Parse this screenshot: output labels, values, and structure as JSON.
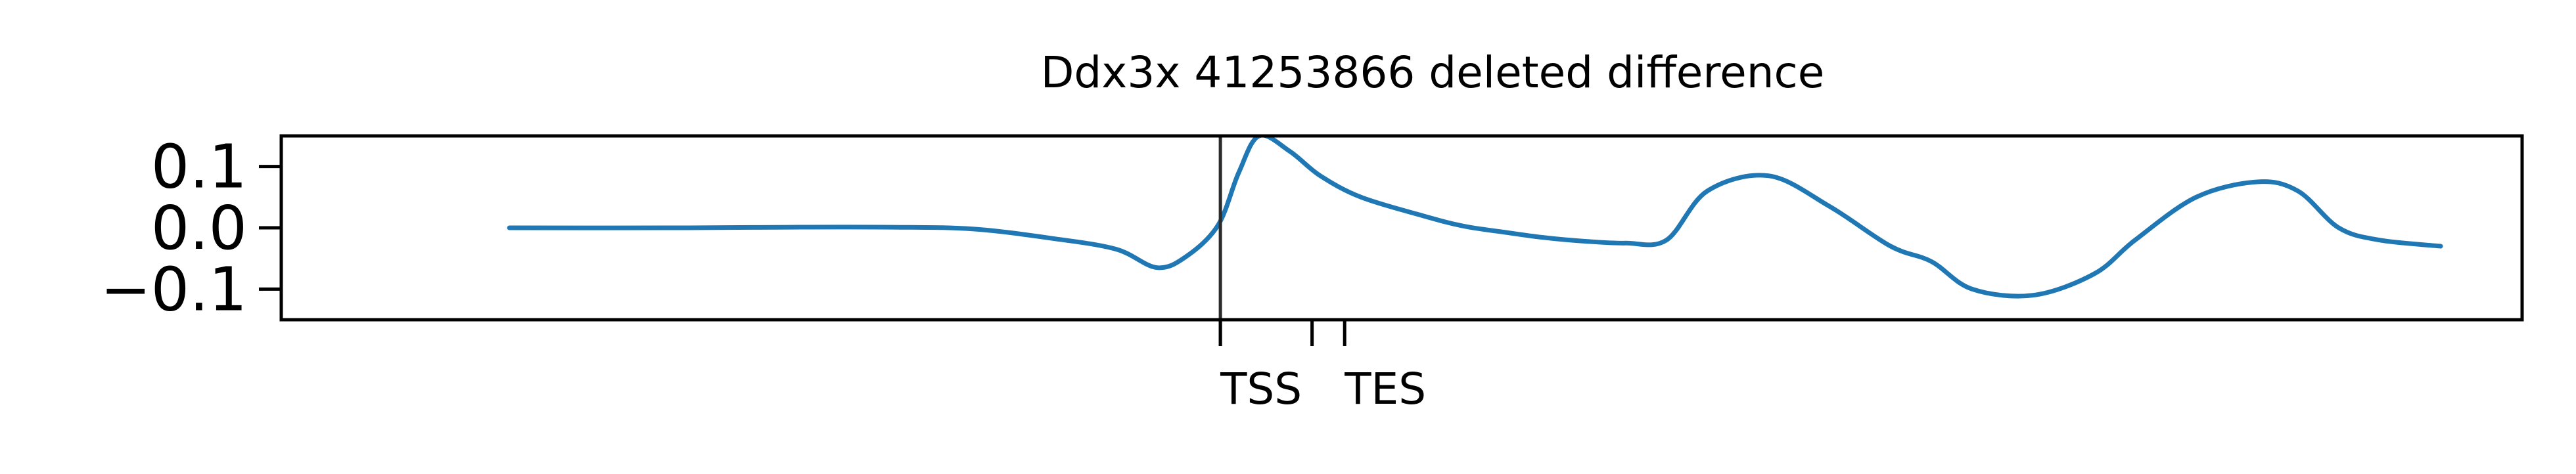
{
  "chart_data": {
    "type": "line",
    "title": "Ddx3x 41253866 deleted difference",
    "xlabel": "",
    "ylabel": "",
    "ylim": [
      -0.15,
      0.15
    ],
    "yticks": [
      {
        "value": 0.1,
        "label": "0.1"
      },
      {
        "value": 0.0,
        "label": "0.0"
      },
      {
        "value": -0.1,
        "label": "−0.1"
      }
    ],
    "xlim": [
      -0.1,
      1.0
    ],
    "xticks": [
      {
        "value": 0.361,
        "label": "TSS"
      },
      {
        "value": 0.406,
        "label": ""
      },
      {
        "value": 0.422,
        "label": "TES"
      }
    ],
    "vline_x": 0.361,
    "grid": false,
    "legend": "none",
    "colors": {
      "line": "#1f77b4",
      "axis": "#000000",
      "marker": "#2b2b2b"
    },
    "series": [
      {
        "x": [
          0.012,
          0.1,
          0.15,
          0.2,
          0.24,
          0.28,
          0.31,
          0.33,
          0.345,
          0.36,
          0.37,
          0.38,
          0.395,
          0.41,
          0.43,
          0.46,
          0.48,
          0.5,
          0.52,
          0.54,
          0.56,
          0.58,
          0.6,
          0.63,
          0.66,
          0.69,
          0.71,
          0.73,
          0.76,
          0.79,
          0.81,
          0.84,
          0.87,
          0.89,
          0.91,
          0.93,
          0.96
        ],
        "y": [
          0.0,
          0.0,
          0.001,
          0.001,
          -0.002,
          -0.018,
          -0.035,
          -0.065,
          -0.045,
          0.005,
          0.09,
          0.15,
          0.125,
          0.085,
          0.05,
          0.02,
          0.003,
          -0.007,
          -0.016,
          -0.022,
          -0.025,
          -0.02,
          0.06,
          0.085,
          0.035,
          -0.03,
          -0.055,
          -0.1,
          -0.11,
          -0.075,
          -0.02,
          0.05,
          0.075,
          0.06,
          0.0,
          -0.02,
          -0.03
        ]
      }
    ]
  }
}
